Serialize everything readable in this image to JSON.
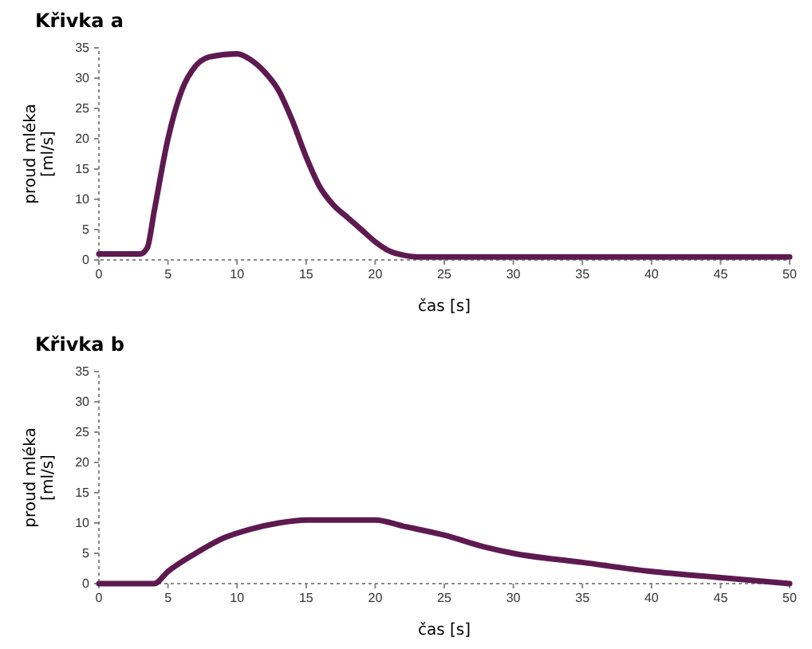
{
  "chart_data": [
    {
      "type": "line",
      "title": "Křivka a",
      "xlabel": "čas [s]",
      "ylabel": "proud mléka [ml/s]",
      "series": [
        {
          "color": "#5e1a50",
          "x": [
            0,
            3,
            3.5,
            4,
            5,
            6,
            7,
            8,
            10,
            11,
            12,
            13,
            14,
            15,
            16,
            17,
            18,
            19,
            20,
            21,
            22,
            23,
            30,
            40,
            50
          ],
          "values": [
            1,
            1,
            2,
            8,
            20,
            28,
            32,
            33.5,
            34,
            33,
            31,
            28,
            23,
            17,
            12,
            9,
            7,
            5,
            3,
            1.5,
            0.8,
            0.5,
            0.5,
            0.5,
            0.5
          ]
        }
      ],
      "xlim": [
        0,
        50
      ],
      "xticks": [
        0,
        5,
        10,
        15,
        20,
        25,
        30,
        35,
        40,
        45,
        50
      ],
      "ylim": [
        0,
        35
      ],
      "yticks": [
        0,
        5,
        10,
        15,
        20,
        25,
        30,
        35
      ],
      "grid": false,
      "line_style": "solid",
      "marker": "none"
    },
    {
      "type": "line",
      "title": "Křivka b",
      "xlabel": "čas [s]",
      "ylabel": "proud mléka [ml/s]",
      "series": [
        {
          "color": "#5e1a50",
          "x": [
            0,
            4,
            5,
            7,
            9,
            11,
            13,
            15,
            20,
            22,
            25,
            28,
            30,
            35,
            40,
            45,
            50
          ],
          "values": [
            0,
            0,
            2,
            5,
            7.5,
            9,
            10,
            10.5,
            10.5,
            9.5,
            8,
            6,
            5,
            3.5,
            2,
            1,
            0
          ]
        }
      ],
      "xlim": [
        0,
        50
      ],
      "xticks": [
        0,
        5,
        10,
        15,
        20,
        25,
        30,
        35,
        40,
        45,
        50
      ],
      "ylim": [
        0,
        35
      ],
      "yticks": [
        0,
        5,
        10,
        15,
        20,
        25,
        30,
        35
      ],
      "grid": false,
      "line_style": "solid",
      "marker": "none"
    }
  ]
}
